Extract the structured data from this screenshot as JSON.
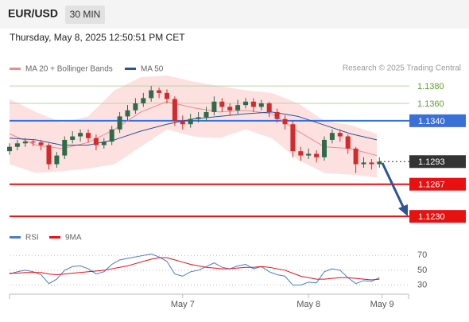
{
  "header": {
    "symbol": "EUR/USD",
    "timeframe": "30 MIN",
    "timestamp": "Thursday, May 8, 2025 12:50:51 PM CET",
    "source": "Research © 2025 Trading Central"
  },
  "chart_data": [
    {
      "type": "candlestick",
      "x": [
        0,
        3,
        6,
        9,
        12,
        15,
        18,
        21,
        24,
        27,
        30,
        33,
        36,
        39,
        42,
        45,
        48,
        51,
        54,
        57,
        60,
        63,
        66,
        69,
        72,
        75,
        78,
        81,
        84,
        87,
        90,
        93,
        96,
        99,
        102,
        105,
        108,
        111,
        114,
        117,
        120,
        123,
        126,
        129,
        132,
        135,
        138,
        141
      ],
      "open": [
        1.1305,
        1.131,
        1.1314,
        1.1316,
        1.1315,
        1.1312,
        1.129,
        1.13,
        1.1318,
        1.1322,
        1.1326,
        1.132,
        1.1312,
        1.1316,
        1.133,
        1.1345,
        1.1352,
        1.136,
        1.1366,
        1.1375,
        1.1372,
        1.1365,
        1.134,
        1.1336,
        1.1342,
        1.1344,
        1.135,
        1.1362,
        1.1356,
        1.1352,
        1.1358,
        1.1362,
        1.1356,
        1.136,
        1.135,
        1.1342,
        1.1336,
        1.1305,
        1.13,
        1.1302,
        1.1298,
        1.1318,
        1.1326,
        1.1322,
        1.1308,
        1.129,
        1.1292,
        1.129
      ],
      "high": [
        1.1314,
        1.1318,
        1.132,
        1.1319,
        1.1318,
        1.1314,
        1.1304,
        1.1322,
        1.1328,
        1.133,
        1.133,
        1.1324,
        1.132,
        1.1334,
        1.135,
        1.1358,
        1.1366,
        1.1372,
        1.138,
        1.1378,
        1.1376,
        1.1368,
        1.1346,
        1.1348,
        1.135,
        1.1356,
        1.1368,
        1.1366,
        1.136,
        1.1364,
        1.1366,
        1.1366,
        1.1364,
        1.1362,
        1.1354,
        1.1346,
        1.134,
        1.131,
        1.1308,
        1.1306,
        1.1322,
        1.133,
        1.133,
        1.1324,
        1.131,
        1.1298,
        1.1296,
        1.1298
      ],
      "low": [
        1.1301,
        1.1306,
        1.131,
        1.1311,
        1.1306,
        1.1284,
        1.1286,
        1.1296,
        1.1314,
        1.1316,
        1.1315,
        1.1306,
        1.1308,
        1.1312,
        1.1326,
        1.134,
        1.1348,
        1.1356,
        1.1362,
        1.1366,
        1.136,
        1.1334,
        1.133,
        1.1332,
        1.1338,
        1.134,
        1.1346,
        1.135,
        1.1346,
        1.1348,
        1.1354,
        1.135,
        1.1352,
        1.1344,
        1.1338,
        1.133,
        1.1298,
        1.1294,
        1.1296,
        1.1292,
        1.1294,
        1.1314,
        1.1316,
        1.1302,
        1.128,
        1.1286,
        1.1284,
        1.1286
      ],
      "close": [
        1.131,
        1.1314,
        1.1316,
        1.1315,
        1.1312,
        1.129,
        1.13,
        1.1318,
        1.1322,
        1.1326,
        1.132,
        1.1312,
        1.1316,
        1.133,
        1.1345,
        1.1352,
        1.136,
        1.1366,
        1.1375,
        1.1372,
        1.1365,
        1.134,
        1.1336,
        1.1342,
        1.1344,
        1.135,
        1.1362,
        1.1356,
        1.1352,
        1.1358,
        1.1362,
        1.1356,
        1.136,
        1.135,
        1.1342,
        1.1336,
        1.1305,
        1.13,
        1.1302,
        1.1298,
        1.1318,
        1.1326,
        1.1322,
        1.1308,
        1.129,
        1.1292,
        1.129,
        1.1293
      ],
      "up_color": "#2e6b4a",
      "down_color": "#d42a2a",
      "series": [
        {
          "name": "MA 20 + Bollinger Bands",
          "color": "#f08a8a",
          "band_color": "#fde0e0",
          "x": [
            0,
            10,
            20,
            30,
            40,
            50,
            60,
            70,
            80,
            90,
            100,
            110,
            120,
            130,
            140
          ],
          "values": [
            1.1325,
            1.1312,
            1.1308,
            1.1315,
            1.133,
            1.135,
            1.1362,
            1.1355,
            1.135,
            1.1352,
            1.1348,
            1.1328,
            1.131,
            1.1308,
            1.13
          ],
          "upper": [
            1.1365,
            1.135,
            1.1338,
            1.1345,
            1.1375,
            1.139,
            1.1392,
            1.1385,
            1.138,
            1.1375,
            1.1372,
            1.136,
            1.134,
            1.1335,
            1.1325
          ],
          "lower": [
            1.129,
            1.128,
            1.1282,
            1.1285,
            1.129,
            1.131,
            1.133,
            1.1322,
            1.132,
            1.133,
            1.132,
            1.1295,
            1.128,
            1.1278,
            1.1275
          ]
        },
        {
          "name": "MA 50",
          "color": "#2b5597",
          "x": [
            0,
            10,
            20,
            30,
            40,
            50,
            60,
            70,
            80,
            90,
            100,
            110,
            120,
            130,
            140
          ],
          "values": [
            1.132,
            1.1318,
            1.1312,
            1.1312,
            1.1318,
            1.1328,
            1.1336,
            1.1342,
            1.1345,
            1.1348,
            1.135,
            1.1345,
            1.1335,
            1.1325,
            1.1318
          ]
        }
      ],
      "levels": [
        {
          "value": 1.138,
          "label": "1.1380",
          "color": "#b5d99a",
          "text_color": "#5aa02c",
          "boxed": false,
          "dotted": false
        },
        {
          "value": 1.136,
          "label": "1.1360",
          "color": "#b5d99a",
          "text_color": "#5aa02c",
          "boxed": false,
          "dotted": false
        },
        {
          "value": 1.134,
          "label": "1.1340",
          "color": "#3a6fd8",
          "text_color": "#ffffff",
          "boxed": true,
          "dotted": false
        },
        {
          "value": 1.1293,
          "label": "1.1293",
          "color": "#333333",
          "text_color": "#ffffff",
          "boxed": true,
          "dotted": true
        },
        {
          "value": 1.1267,
          "label": "1.1267",
          "color": "#e81010",
          "text_color": "#ffffff",
          "boxed": true,
          "dotted": false
        },
        {
          "value": 1.123,
          "label": "1.1230",
          "color": "#e81010",
          "text_color": "#ffffff",
          "boxed": true,
          "dotted": false
        }
      ],
      "xlim": [
        0,
        152
      ],
      "ylim": [
        1.1221,
        1.1392
      ],
      "xticks": [
        {
          "value": 66,
          "label": "May 7"
        },
        {
          "value": 114,
          "label": "May 8"
        },
        {
          "value": 142,
          "label": "May 9"
        }
      ]
    },
    {
      "type": "line",
      "x": [
        0,
        3,
        6,
        9,
        12,
        15,
        18,
        21,
        24,
        27,
        30,
        33,
        36,
        39,
        42,
        45,
        48,
        51,
        54,
        57,
        60,
        63,
        66,
        69,
        72,
        75,
        78,
        81,
        84,
        87,
        90,
        93,
        96,
        99,
        102,
        105,
        108,
        111,
        114,
        117,
        120,
        123,
        126,
        129,
        132,
        135,
        138,
        141
      ],
      "series": [
        {
          "name": "RSI",
          "color": "#4a7bd4",
          "values": [
            45,
            48,
            50,
            48,
            44,
            32,
            38,
            50,
            55,
            56,
            52,
            45,
            48,
            58,
            64,
            66,
            68,
            70,
            72,
            68,
            62,
            45,
            42,
            48,
            50,
            55,
            60,
            54,
            52,
            56,
            58,
            52,
            55,
            48,
            44,
            42,
            30,
            30,
            34,
            33,
            48,
            52,
            50,
            40,
            32,
            36,
            35,
            40
          ]
        },
        {
          "name": "9MA",
          "color": "#e81010",
          "values": [
            46,
            46,
            47,
            47,
            47,
            45,
            44,
            45,
            46,
            47,
            48,
            49,
            50,
            52,
            54,
            56,
            59,
            62,
            65,
            67,
            67,
            64,
            61,
            58,
            56,
            54,
            53,
            52,
            52,
            53,
            54,
            54,
            55,
            54,
            52,
            50,
            46,
            42,
            40,
            38,
            38,
            39,
            40,
            40,
            39,
            38,
            37,
            38
          ]
        }
      ],
      "xlim": [
        0,
        152
      ],
      "ylim": [
        22,
        80
      ],
      "yticks": [
        70,
        50,
        30
      ]
    }
  ]
}
